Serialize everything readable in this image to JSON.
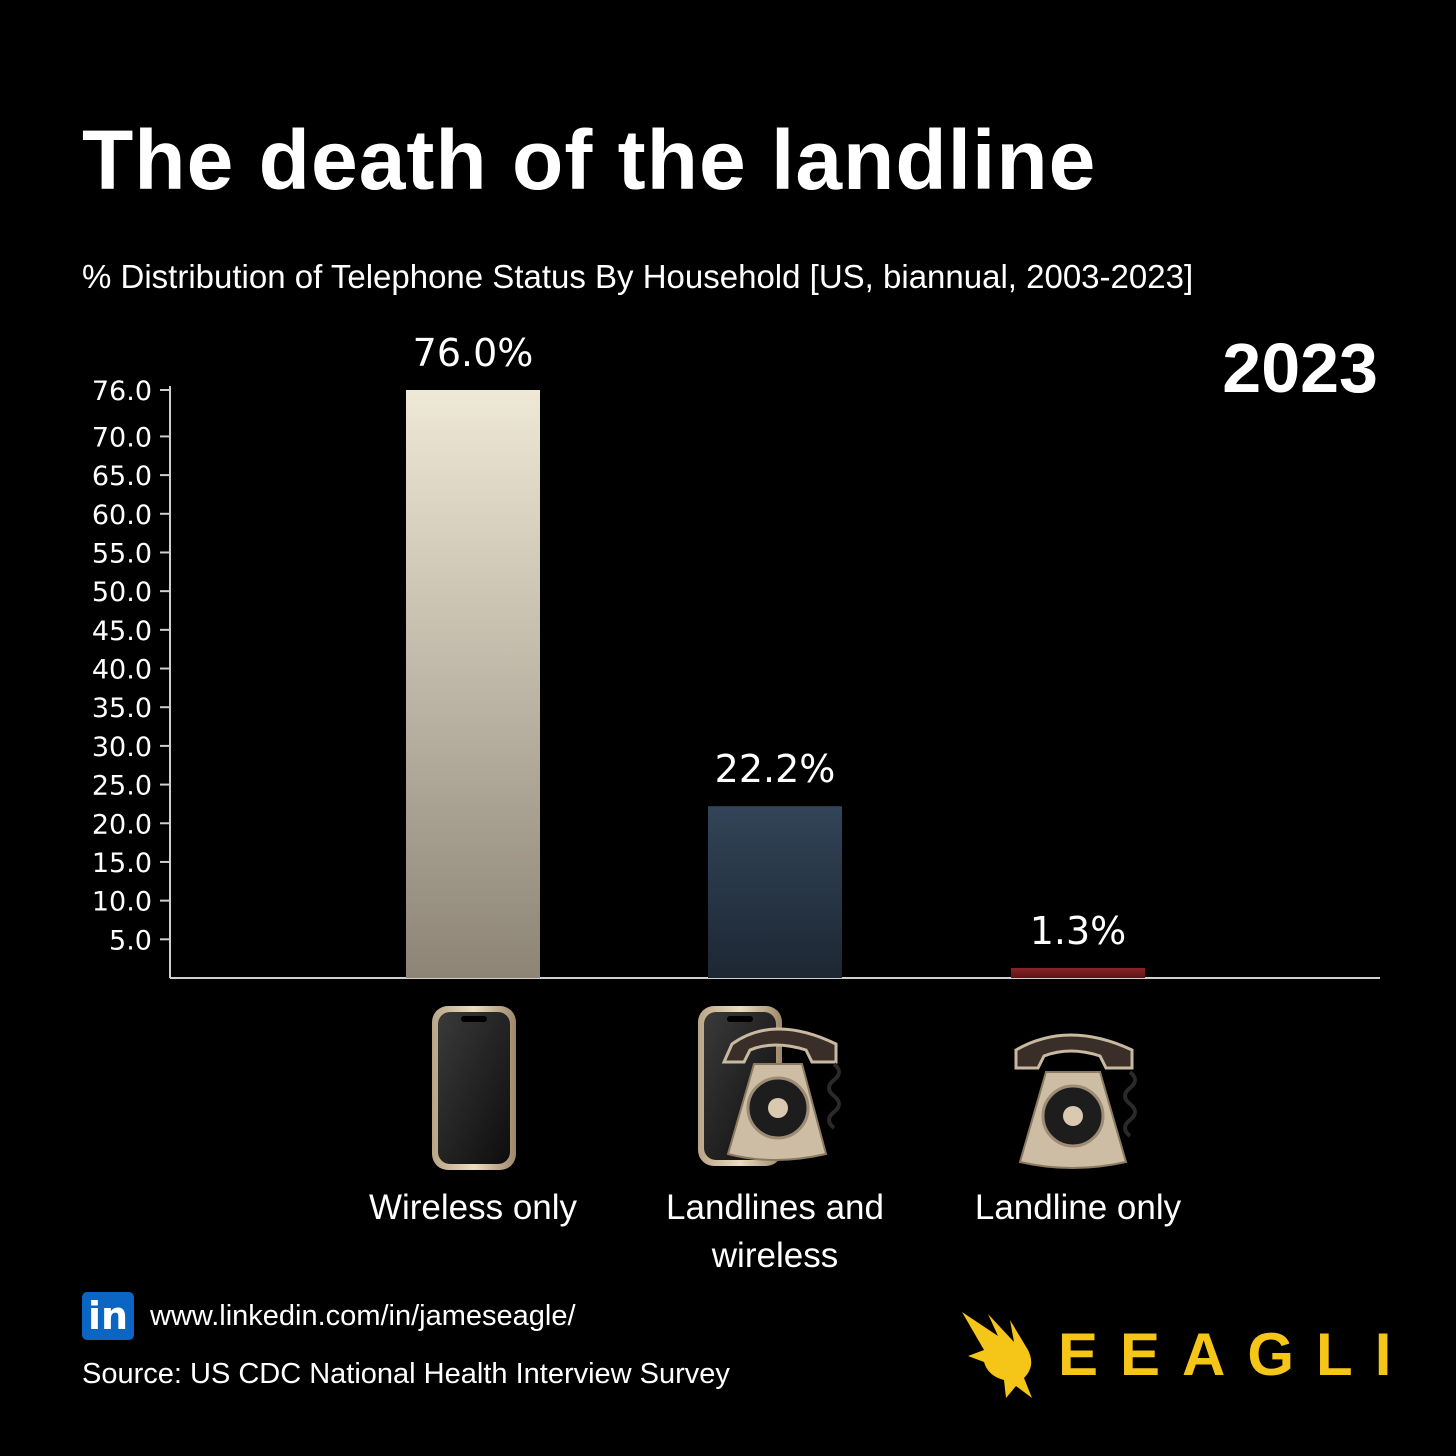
{
  "title": "The death of the landline",
  "subtitle": "% Distribution of Telephone Status By Household [US, biannual, 2003-2023]",
  "year": "2023",
  "colors": {
    "background": "#000000",
    "wireless_only": "#c9bfae",
    "landlines_and_wireless": "#2c3d52",
    "landline_only": "#7a1f22",
    "brand": "#f5c518",
    "linkedin": "#0a66c2"
  },
  "chart_data": {
    "type": "bar",
    "title": "The death of the landline",
    "categories": [
      "Wireless only",
      "Landlines and wireless",
      "Landline only"
    ],
    "category_lines": [
      [
        "Wireless only"
      ],
      [
        "Landlines and",
        "wireless"
      ],
      [
        "Landline only"
      ]
    ],
    "values": [
      76.0,
      22.2,
      1.3
    ],
    "data_labels": [
      "76.0%",
      "22.2%",
      "1.3%"
    ],
    "icons": [
      "smartphone-icon",
      "smartphone-and-rotary-phone-icon",
      "rotary-phone-icon"
    ],
    "yticks": [
      "5.0",
      "10.0",
      "15.0",
      "20.0",
      "25.0",
      "30.0",
      "35.0",
      "40.0",
      "45.0",
      "50.0",
      "55.0",
      "60.0",
      "65.0",
      "70.0",
      "76.0"
    ],
    "ylim": [
      0,
      76.0
    ],
    "xlabel": "",
    "ylabel": ""
  },
  "footer": {
    "linkedin_icon": "in",
    "linkedin_url": "www.linkedin.com/in/jameseagle/",
    "source": "Source: US CDC National Health Interview Survey",
    "brand_name": "EEAGLI",
    "brand_icon": "eagle-icon"
  }
}
